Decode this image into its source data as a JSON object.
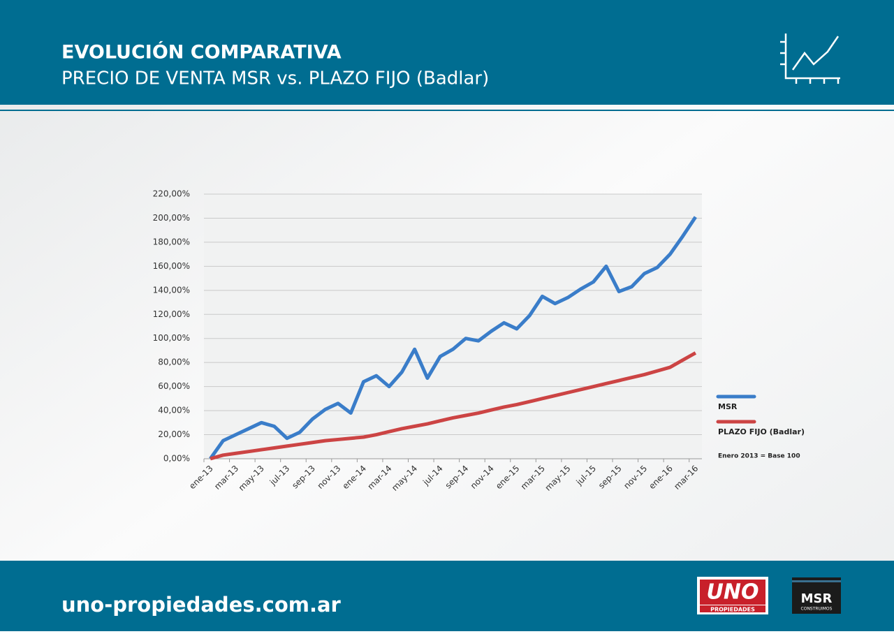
{
  "header": {
    "title": "EVOLUCIÓN COMPARATIVA",
    "subtitle": "PRECIO DE VENTA MSR vs. PLAZO FIJO (Badlar)"
  },
  "footer": {
    "url": "uno-propiedades.com.ar",
    "logos": [
      "UNO",
      "PROPIEDADES",
      "MSR",
      "CONSTRUIMOS"
    ]
  },
  "chart_data": {
    "type": "line",
    "categories": [
      "ene-13",
      null,
      "mar-13",
      null,
      "may-13",
      null,
      "jul-13",
      null,
      "sep-13",
      null,
      "nov-13",
      null,
      "ene-14",
      null,
      "mar-14",
      null,
      "may-14",
      null,
      "jul-14",
      null,
      "sep-14",
      null,
      "nov-14",
      null,
      "ene-15",
      null,
      "mar-15",
      null,
      "may-15",
      null,
      "jul-15",
      null,
      "sep-15",
      null,
      "nov-15",
      null,
      "ene-16",
      null,
      "mar-16"
    ],
    "series": [
      {
        "name": "MSR",
        "color": "#3a7dc9",
        "values": [
          0,
          15,
          20,
          25,
          30,
          27,
          17,
          22,
          33,
          41,
          46,
          38,
          64,
          69,
          60,
          72,
          91,
          67,
          85,
          91,
          100,
          98,
          106,
          113,
          108,
          119,
          135,
          129,
          134,
          141,
          147,
          160,
          139,
          143,
          154,
          159,
          170,
          185,
          201
        ]
      },
      {
        "name": "PLAZO FIJO (Badlar)",
        "color": "#cc4444",
        "values": [
          0,
          3,
          4.5,
          6,
          7.5,
          9,
          10.5,
          12,
          13.5,
          15,
          16,
          17,
          18,
          20,
          22.5,
          25,
          27,
          29,
          31.5,
          34,
          36,
          38,
          40.5,
          43,
          45,
          47.5,
          50,
          52.5,
          55,
          57.5,
          60,
          62.5,
          65,
          67.5,
          70,
          73,
          76,
          82,
          88
        ]
      }
    ],
    "ylim": [
      0,
      220
    ],
    "yticks": [
      {
        "value": 0,
        "label": "0,00%"
      },
      {
        "value": 20,
        "label": "20,00%"
      },
      {
        "value": 40,
        "label": "40,00%"
      },
      {
        "value": 60,
        "label": "60,00%"
      },
      {
        "value": 80,
        "label": "80,00%"
      },
      {
        "value": 100,
        "label": "100,00%"
      },
      {
        "value": 120,
        "label": "120,00%"
      },
      {
        "value": 140,
        "label": "140,00%"
      },
      {
        "value": 160,
        "label": "160,00%"
      },
      {
        "value": 180,
        "label": "180,00%"
      },
      {
        "value": 200,
        "label": "200,00%"
      },
      {
        "value": 220,
        "label": "220,00%"
      }
    ],
    "grid": true,
    "note": "Enero 2013 = Base 100",
    "legend": "right"
  }
}
